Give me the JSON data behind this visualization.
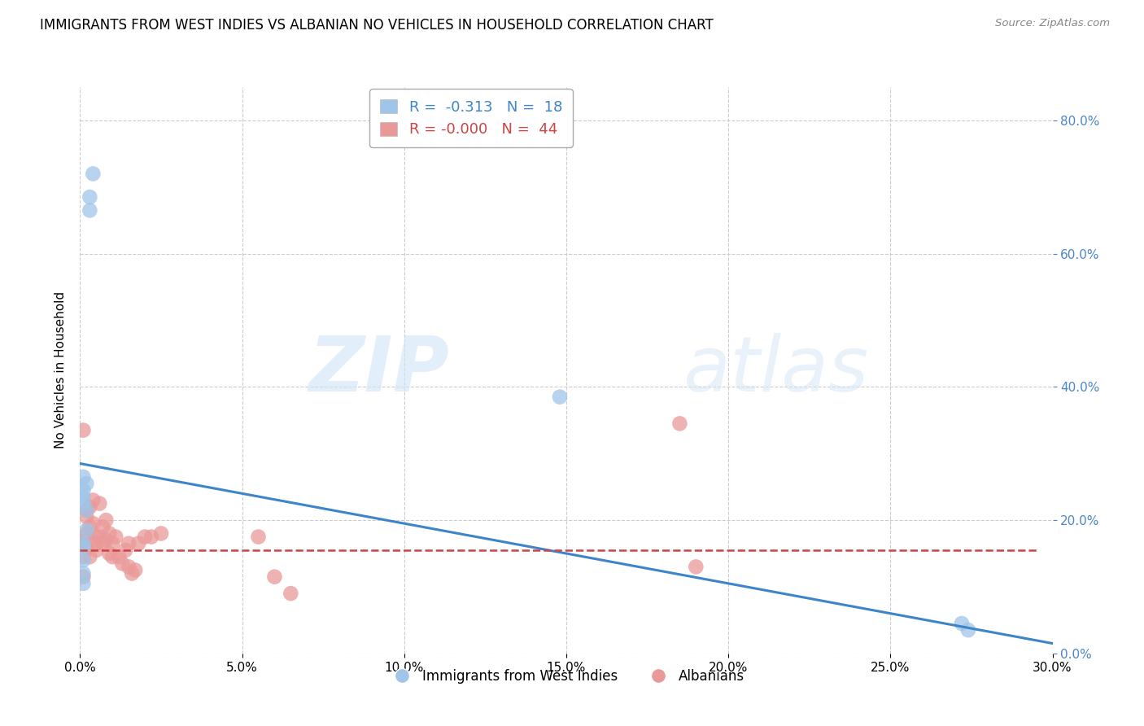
{
  "title": "IMMIGRANTS FROM WEST INDIES VS ALBANIAN NO VEHICLES IN HOUSEHOLD CORRELATION CHART",
  "source": "Source: ZipAtlas.com",
  "ylabel": "No Vehicles in Household",
  "legend_label1": "Immigrants from West Indies",
  "legend_label2": "Albanians",
  "R1": "-0.313",
  "N1": "18",
  "R2": "-0.000",
  "N2": "44",
  "xlim": [
    0.0,
    0.3
  ],
  "ylim": [
    0.0,
    0.85
  ],
  "yticks": [
    0.0,
    0.2,
    0.4,
    0.6,
    0.8
  ],
  "xticks": [
    0.0,
    0.05,
    0.1,
    0.15,
    0.2,
    0.25,
    0.3
  ],
  "color_blue": "#9fc5e8",
  "color_pink": "#ea9999",
  "color_blue_line": "#3d85c8",
  "color_pink_line": "#cc4444",
  "color_right_axis": "#4a86c8",
  "watermark_color": "#d0e4f5",
  "blue_scatter_x": [
    0.004,
    0.003,
    0.003,
    0.001,
    0.002,
    0.001,
    0.001,
    0.001,
    0.002,
    0.002,
    0.001,
    0.001,
    0.001,
    0.001,
    0.001,
    0.148,
    0.272,
    0.274
  ],
  "blue_scatter_y": [
    0.72,
    0.685,
    0.665,
    0.265,
    0.255,
    0.245,
    0.235,
    0.225,
    0.215,
    0.185,
    0.165,
    0.16,
    0.14,
    0.12,
    0.105,
    0.385,
    0.045,
    0.035
  ],
  "pink_scatter_x": [
    0.001,
    0.001,
    0.001,
    0.001,
    0.001,
    0.002,
    0.002,
    0.002,
    0.002,
    0.003,
    0.003,
    0.003,
    0.004,
    0.004,
    0.005,
    0.005,
    0.005,
    0.006,
    0.006,
    0.007,
    0.007,
    0.008,
    0.008,
    0.009,
    0.009,
    0.01,
    0.01,
    0.011,
    0.012,
    0.013,
    0.014,
    0.015,
    0.015,
    0.016,
    0.017,
    0.018,
    0.02,
    0.022,
    0.025,
    0.055,
    0.06,
    0.065,
    0.185,
    0.19
  ],
  "pink_scatter_y": [
    0.335,
    0.175,
    0.165,
    0.145,
    0.115,
    0.215,
    0.205,
    0.18,
    0.16,
    0.22,
    0.19,
    0.145,
    0.23,
    0.195,
    0.175,
    0.165,
    0.155,
    0.225,
    0.175,
    0.19,
    0.165,
    0.2,
    0.17,
    0.18,
    0.15,
    0.165,
    0.145,
    0.175,
    0.145,
    0.135,
    0.155,
    0.165,
    0.13,
    0.12,
    0.125,
    0.165,
    0.175,
    0.175,
    0.18,
    0.175,
    0.115,
    0.09,
    0.345,
    0.13
  ],
  "blue_line_x": [
    0.0,
    0.3
  ],
  "blue_line_y": [
    0.285,
    0.015
  ],
  "pink_line_x": [
    0.0,
    0.295
  ],
  "pink_line_y": [
    0.155,
    0.155
  ],
  "background_color": "#ffffff",
  "grid_color": "#cccccc",
  "title_fontsize": 12,
  "axis_label_fontsize": 11,
  "tick_fontsize": 11,
  "legend_fontsize": 13
}
